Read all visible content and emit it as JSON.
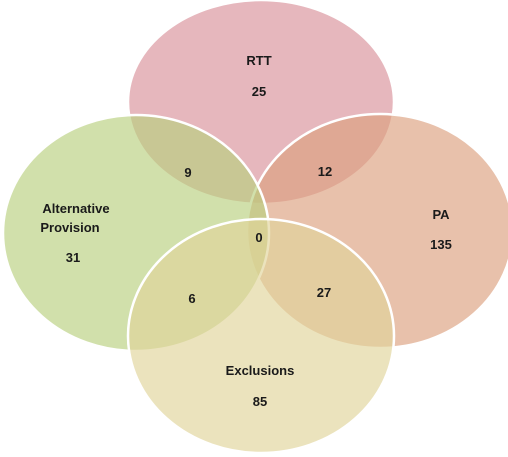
{
  "sets": [
    {
      "id": "rtt",
      "name": "RTT",
      "value": "25",
      "color": "#d9909a"
    },
    {
      "id": "pa",
      "name": "PA",
      "value": "135",
      "color": "#dca07e"
    },
    {
      "id": "ap",
      "name_line1": "Alternative",
      "name_line2": "Provision",
      "value": "31",
      "color": "#b9cf7e"
    },
    {
      "id": "excl",
      "name": "Exclusions",
      "value": "85",
      "color": "#e0d49a"
    }
  ],
  "intersections": {
    "rtt_ap": "9",
    "rtt_pa": "12",
    "center": "0",
    "ap_excl": "6",
    "pa_excl": "27"
  }
}
